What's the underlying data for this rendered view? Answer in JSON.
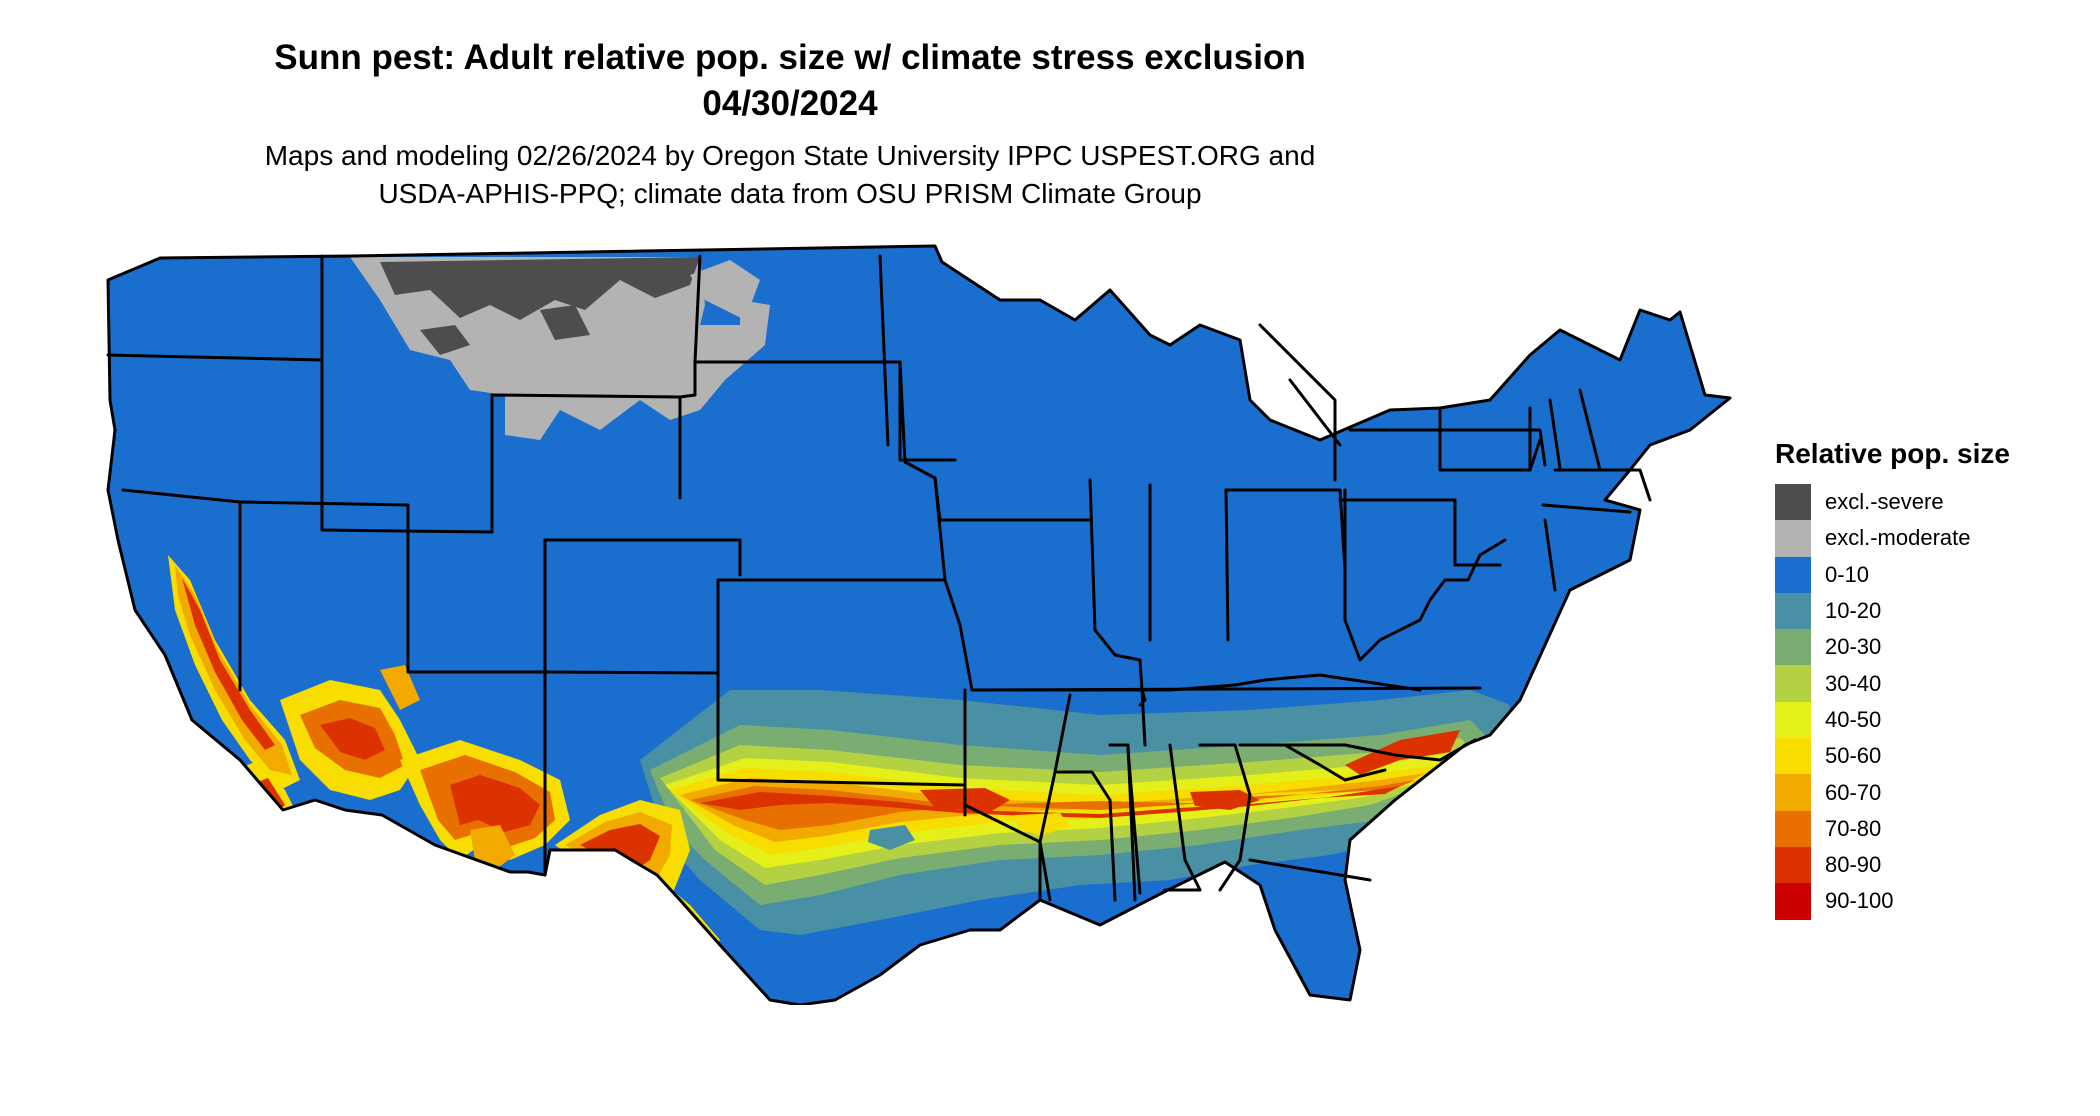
{
  "title_line1": "Sunn pest: Adult relative pop. size w/ climate stress exclusion",
  "title_line2": "04/30/2024",
  "subtitle_line1": "Maps and modeling 02/26/2024 by Oregon State University IPPC USPEST.ORG and",
  "subtitle_line2": "USDA-APHIS-PPQ; climate data from OSU PRISM Climate Group",
  "legend": {
    "title": "Relative pop. size",
    "items": [
      {
        "label": "excl.-severe",
        "color": "#4d4d4d"
      },
      {
        "label": "excl.-moderate",
        "color": "#b3b3b3"
      },
      {
        "label": "0-10",
        "color": "#1a6fce"
      },
      {
        "label": "10-20",
        "color": "#4a90a4"
      },
      {
        "label": "20-30",
        "color": "#7aad72"
      },
      {
        "label": "30-40",
        "color": "#b3d142"
      },
      {
        "label": "40-50",
        "color": "#e5ef19"
      },
      {
        "label": "50-60",
        "color": "#f7dd00"
      },
      {
        "label": "60-70",
        "color": "#f2a900"
      },
      {
        "label": "70-80",
        "color": "#e87000"
      },
      {
        "label": "80-90",
        "color": "#dc3200"
      },
      {
        "label": "90-100",
        "color": "#cc0000"
      }
    ]
  },
  "colors": {
    "base": "#1a6fce",
    "border": "#000000"
  }
}
